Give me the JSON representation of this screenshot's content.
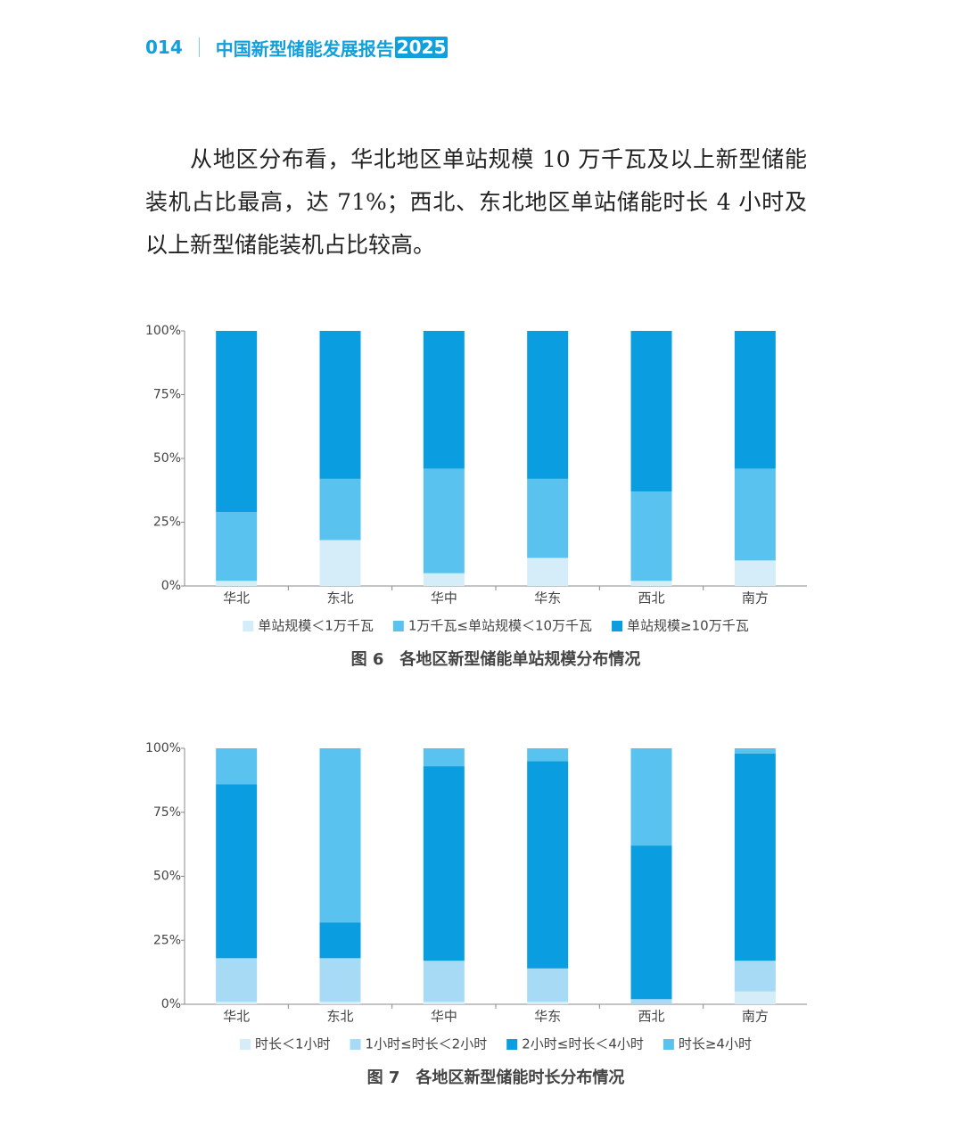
{
  "header": {
    "page_number": "014",
    "title": "中国新型储能发展报告",
    "title_year": "2025"
  },
  "paragraph": "从地区分布看，华北地区单站规模 10 万千瓦及以上新型储能装机占比最高，达 71%；西北、东北地区单站储能时长 4 小时及以上新型储能装机占比较高。",
  "chart_data": [
    {
      "type": "stacked_bar",
      "caption": "图 6　各地区新型储能单站规模分布情况",
      "categories": [
        "华北",
        "东北",
        "华中",
        "华东",
        "西北",
        "南方"
      ],
      "series": [
        {
          "name": "单站规模＜1万千瓦",
          "color": "#d4edf9",
          "values": [
            2,
            18,
            5,
            11,
            2,
            10
          ]
        },
        {
          "name": "1万千瓦≤单站规模＜10万千瓦",
          "color": "#5ac2ee",
          "values": [
            27,
            24,
            41,
            31,
            35,
            36
          ]
        },
        {
          "name": "单站规模≥10万千瓦",
          "color": "#0a9de0",
          "values": [
            71,
            58,
            54,
            58,
            63,
            54
          ]
        }
      ],
      "ylim": [
        0,
        100
      ],
      "yticks": [
        {
          "value": 0,
          "label": "0%"
        },
        {
          "value": 25,
          "label": "25%"
        },
        {
          "value": 50,
          "label": "50%"
        },
        {
          "value": 75,
          "label": "75%"
        },
        {
          "value": 100,
          "label": "100%"
        }
      ]
    },
    {
      "type": "stacked_bar",
      "caption": "图 7　各地区新型储能时长分布情况",
      "categories": [
        "华北",
        "东北",
        "华中",
        "华东",
        "西北",
        "南方"
      ],
      "series": [
        {
          "name": "时长＜1小时",
          "color": "#d4edf9",
          "values": [
            1,
            1,
            1,
            1,
            0,
            5
          ]
        },
        {
          "name": "1小时≤时长＜2小时",
          "color": "#a6daf5",
          "values": [
            17,
            17,
            16,
            13,
            2,
            12
          ]
        },
        {
          "name": "2小时≤时长＜4小时",
          "color": "#0a9de0",
          "values": [
            68,
            14,
            76,
            81,
            60,
            81
          ]
        },
        {
          "name": "时长≥4小时",
          "color": "#5ac2ee",
          "values": [
            14,
            68,
            7,
            5,
            38,
            2
          ]
        }
      ],
      "ylim": [
        0,
        100
      ],
      "yticks": [
        {
          "value": 0,
          "label": "0%"
        },
        {
          "value": 25,
          "label": "25%"
        },
        {
          "value": 50,
          "label": "50%"
        },
        {
          "value": 75,
          "label": "75%"
        },
        {
          "value": 100,
          "label": "100%"
        }
      ]
    }
  ]
}
